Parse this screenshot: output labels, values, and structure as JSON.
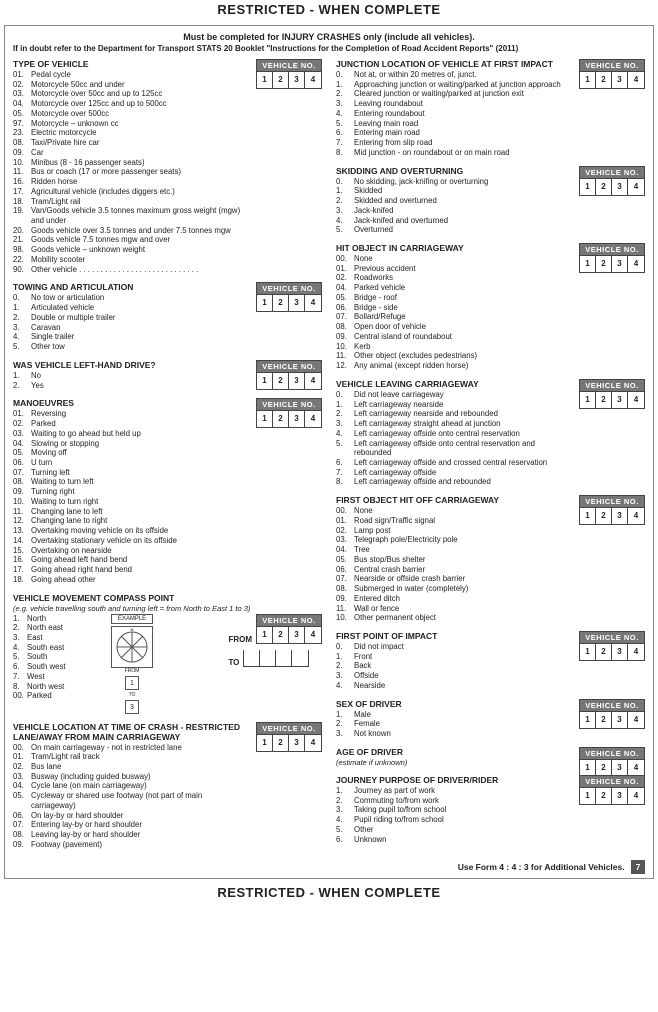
{
  "banner": "RESTRICTED - WHEN COMPLETE",
  "heading": "Must be completed for INJURY CRASHES only (include all vehicles).",
  "subheading": "If in doubt refer to the Department for Transport STATS 20 Booklet \"Instructions for the Completion of Road Accident Reports\" (2011)",
  "vehicleNoLabel": "VEHICLE NO.",
  "vehicleCells": [
    "1",
    "2",
    "3",
    "4"
  ],
  "fromLabel": "FROM",
  "toLabel": "TO",
  "compassExample": "EXAMPLE",
  "compassFrom": "FROM",
  "compassTo": "TO",
  "compassFromVal": "1",
  "compassToVal": "3",
  "footer": "Use Form 4 : 4 : 3 for Additional Vehicles.",
  "pageNum": "7",
  "leftSections": [
    {
      "title": "TYPE OF VEHICLE",
      "vbox": true,
      "items": [
        {
          "n": "01.",
          "t": "Pedal cycle"
        },
        {
          "n": "02.",
          "t": "Motorcycle 50cc and under"
        },
        {
          "n": "03.",
          "t": "Motorcycle over 50cc and up to 125cc"
        },
        {
          "n": "04.",
          "t": "Motorcycle over 125cc and up to 500cc"
        },
        {
          "n": "05.",
          "t": "Motorcycle over 500cc"
        },
        {
          "n": "97.",
          "t": "Motorcycle – unknown cc"
        },
        {
          "n": "23.",
          "t": "Electric motorcycle"
        },
        {
          "n": "08.",
          "t": "Taxi/Private hire car"
        },
        {
          "n": "09.",
          "t": "Car"
        },
        {
          "n": "10.",
          "t": "Minibus (8 - 16 passenger seats)"
        },
        {
          "n": "11.",
          "t": "Bus or coach (17 or more passenger seats)"
        },
        {
          "n": "16.",
          "t": "Ridden horse"
        },
        {
          "n": "17.",
          "t": "Agricultural vehicle (includes diggers etc.)"
        },
        {
          "n": "18.",
          "t": "Tram/Light rail"
        },
        {
          "n": "19.",
          "t": "Van/Goods vehicle 3.5 tonnes maximum gross weight (mgw) and under"
        },
        {
          "n": "20.",
          "t": "Goods vehicle over 3.5 tonnes and under 7.5 tonnes mgw"
        },
        {
          "n": "21.",
          "t": "Goods vehicle 7.5 tonnes mgw and over"
        },
        {
          "n": "98.",
          "t": "Goods vehicle – unknown weight"
        },
        {
          "n": "22.",
          "t": "Mobility scooter"
        },
        {
          "n": "90.",
          "t": "Other vehicle . . . . . . . . . . . . . . . . . . . . . . . . . . . ."
        }
      ]
    },
    {
      "title": "TOWING AND ARTICULATION",
      "vbox": true,
      "items": [
        {
          "n": "0.",
          "t": "No tow or articulation"
        },
        {
          "n": "1.",
          "t": "Articulated vehicle"
        },
        {
          "n": "2.",
          "t": "Double or multiple trailer"
        },
        {
          "n": "3.",
          "t": "Caravan"
        },
        {
          "n": "4.",
          "t": "Single trailer"
        },
        {
          "n": "5.",
          "t": "Other tow"
        }
      ]
    },
    {
      "title": "WAS VEHICLE LEFT-HAND DRIVE?",
      "vbox": true,
      "items": [
        {
          "n": "1.",
          "t": "No"
        },
        {
          "n": "2.",
          "t": "Yes"
        }
      ]
    },
    {
      "title": "MANOEUVRES",
      "vbox": true,
      "items": [
        {
          "n": "01.",
          "t": "Reversing"
        },
        {
          "n": "02.",
          "t": "Parked"
        },
        {
          "n": "03.",
          "t": "Waiting to go ahead but held up"
        },
        {
          "n": "04.",
          "t": "Slowing or stopping"
        },
        {
          "n": "05.",
          "t": "Moving off"
        },
        {
          "n": "06.",
          "t": "U turn"
        },
        {
          "n": "07.",
          "t": "Turning left"
        },
        {
          "n": "08.",
          "t": "Waiting to turn left"
        },
        {
          "n": "09.",
          "t": "Turning right"
        },
        {
          "n": "10.",
          "t": "Waiting to turn right"
        },
        {
          "n": "11.",
          "t": "Changing lane to left"
        },
        {
          "n": "12.",
          "t": "Changing lane to right"
        },
        {
          "n": "13.",
          "t": "Overtaking moving vehicle on its offside"
        },
        {
          "n": "14.",
          "t": "Overtaking stationary vehicle on its offside"
        },
        {
          "n": "15.",
          "t": "Overtaking on nearside"
        },
        {
          "n": "16.",
          "t": "Going ahead left hand bend"
        },
        {
          "n": "17.",
          "t": "Going ahead right hand bend"
        },
        {
          "n": "18.",
          "t": "Going ahead other"
        }
      ]
    },
    {
      "title": "VEHICLE MOVEMENT COMPASS POINT",
      "sub": "(e.g. vehicle travelling south and turning left = from North to East 1 to 3)",
      "compass": true,
      "items": [
        {
          "n": "1.",
          "t": "North"
        },
        {
          "n": "2.",
          "t": "North east"
        },
        {
          "n": "3.",
          "t": "East"
        },
        {
          "n": "4.",
          "t": "South east"
        },
        {
          "n": "5.",
          "t": "South"
        },
        {
          "n": "6.",
          "t": "South west"
        },
        {
          "n": "7.",
          "t": "West"
        },
        {
          "n": "8.",
          "t": "North west"
        },
        {
          "n": "00.",
          "t": "Parked"
        }
      ]
    },
    {
      "title": "VEHICLE LOCATION AT TIME OF CRASH - RESTRICTED LANE/AWAY FROM MAIN CARRIAGEWAY",
      "vbox": true,
      "items": [
        {
          "n": "00.",
          "t": "On main carriageway - not in restricted lane"
        },
        {
          "n": "01.",
          "t": "Tram/Light rail track"
        },
        {
          "n": "02.",
          "t": "Bus lane"
        },
        {
          "n": "03.",
          "t": "Busway (including guided busway)"
        },
        {
          "n": "04.",
          "t": "Cycle lane (on main carriageway)"
        },
        {
          "n": "05.",
          "t": "Cycleway or shared use footway (not part of main carriageway)"
        },
        {
          "n": "06.",
          "t": "On lay-by or hard shoulder"
        },
        {
          "n": "07.",
          "t": "Entering lay-by or hard shoulder"
        },
        {
          "n": "08.",
          "t": "Leaving lay-by or hard shoulder"
        },
        {
          "n": "09.",
          "t": "Footway (pavement)"
        }
      ]
    }
  ],
  "rightSections": [
    {
      "title": "JUNCTION LOCATION OF VEHICLE AT FIRST IMPACT",
      "vbox": true,
      "items": [
        {
          "n": "0.",
          "t": "Not at, or within 20 metres of, junct."
        },
        {
          "n": "1.",
          "t": "Approaching junction or waiting/parked at junction approach"
        },
        {
          "n": "2.",
          "t": "Cleared junction or waiting/parked at junction exit"
        },
        {
          "n": "3.",
          "t": "Leaving roundabout"
        },
        {
          "n": "4.",
          "t": "Entering roundabout"
        },
        {
          "n": "5.",
          "t": "Leaving main road"
        },
        {
          "n": "6.",
          "t": "Entering main road"
        },
        {
          "n": "7.",
          "t": "Entering from slip road"
        },
        {
          "n": "8.",
          "t": "Mid junction - on roundabout or on main road"
        }
      ]
    },
    {
      "title": "SKIDDING AND OVERTURNING",
      "vbox": true,
      "items": [
        {
          "n": "0.",
          "t": "No skidding, jack-knifing or overturning"
        },
        {
          "n": "1.",
          "t": "Skidded"
        },
        {
          "n": "2.",
          "t": "Skidded and overturned"
        },
        {
          "n": "3.",
          "t": "Jack-knifed"
        },
        {
          "n": "4.",
          "t": "Jack-knifed and overturned"
        },
        {
          "n": "5.",
          "t": "Overturned"
        }
      ]
    },
    {
      "title": "HIT OBJECT IN CARRIAGEWAY",
      "vbox": true,
      "items": [
        {
          "n": "00.",
          "t": "None"
        },
        {
          "n": "01.",
          "t": "Previous accident"
        },
        {
          "n": "02.",
          "t": "Roadworks"
        },
        {
          "n": "04.",
          "t": "Parked vehicle"
        },
        {
          "n": "05.",
          "t": "Bridge - roof"
        },
        {
          "n": "06.",
          "t": "Bridge - side"
        },
        {
          "n": "07.",
          "t": "Bollard/Refuge"
        },
        {
          "n": "08.",
          "t": "Open door of vehicle"
        },
        {
          "n": "09.",
          "t": "Central island of roundabout"
        },
        {
          "n": "10.",
          "t": "Kerb"
        },
        {
          "n": "11.",
          "t": "Other object (excludes pedestrians)"
        },
        {
          "n": "12.",
          "t": "Any animal (except ridden horse)"
        }
      ]
    },
    {
      "title": "VEHICLE LEAVING CARRIAGEWAY",
      "vbox": true,
      "items": [
        {
          "n": "0.",
          "t": "Did not leave carriageway"
        },
        {
          "n": "1.",
          "t": "Left carriageway nearside"
        },
        {
          "n": "2.",
          "t": "Left carriageway nearside and rebounded"
        },
        {
          "n": "3.",
          "t": "Left carriageway straight ahead at junction"
        },
        {
          "n": "4.",
          "t": "Left carriageway offside onto central reservation"
        },
        {
          "n": "5.",
          "t": "Left carriageway offside onto central reservation and rebounded"
        },
        {
          "n": "6.",
          "t": "Left carriageway offside and crossed central reservation"
        },
        {
          "n": "7.",
          "t": "Left carriageway offside"
        },
        {
          "n": "8.",
          "t": "Left carriageway offside and rebounded"
        }
      ]
    },
    {
      "title": "FIRST OBJECT HIT OFF CARRIAGEWAY",
      "vbox": true,
      "items": [
        {
          "n": "00.",
          "t": "None"
        },
        {
          "n": "01.",
          "t": "Road sign/Traffic signal"
        },
        {
          "n": "02.",
          "t": "Lamp post"
        },
        {
          "n": "03.",
          "t": "Telegraph pole/Electricity pole"
        },
        {
          "n": "04.",
          "t": "Tree"
        },
        {
          "n": "05.",
          "t": "Bus stop/Bus shelter"
        },
        {
          "n": "06.",
          "t": "Central crash barrier"
        },
        {
          "n": "07.",
          "t": "Nearside or offside crash barrier"
        },
        {
          "n": "08.",
          "t": "Submerged in water (completely)"
        },
        {
          "n": "09.",
          "t": "Entered ditch"
        },
        {
          "n": "11.",
          "t": "Wall or fence"
        },
        {
          "n": "10.",
          "t": "Other permanent object"
        }
      ]
    },
    {
      "title": "FIRST POINT OF IMPACT",
      "vbox": true,
      "items": [
        {
          "n": "0.",
          "t": "Did not impact"
        },
        {
          "n": "1.",
          "t": "Front"
        },
        {
          "n": "2.",
          "t": "Back"
        },
        {
          "n": "3.",
          "t": "Offside"
        },
        {
          "n": "4.",
          "t": "Nearside"
        }
      ]
    },
    {
      "title": "SEX OF DRIVER",
      "vbox": true,
      "items": [
        {
          "n": "1.",
          "t": "Male"
        },
        {
          "n": "2.",
          "t": "Female"
        },
        {
          "n": "3.",
          "t": "Not known"
        }
      ]
    },
    {
      "title": "AGE OF DRIVER",
      "sub": "(estimate if unknown)",
      "vbox": true,
      "items": []
    },
    {
      "title": "JOURNEY PURPOSE OF DRIVER/RIDER",
      "vbox": true,
      "items": [
        {
          "n": "1.",
          "t": "Journey as part of work"
        },
        {
          "n": "2.",
          "t": "Commuting to/from work"
        },
        {
          "n": "3.",
          "t": "Taking pupil to/from school"
        },
        {
          "n": "4.",
          "t": "Pupil riding to/from school"
        },
        {
          "n": "5.",
          "t": "Other"
        },
        {
          "n": "6.",
          "t": "Unknown"
        }
      ]
    }
  ]
}
